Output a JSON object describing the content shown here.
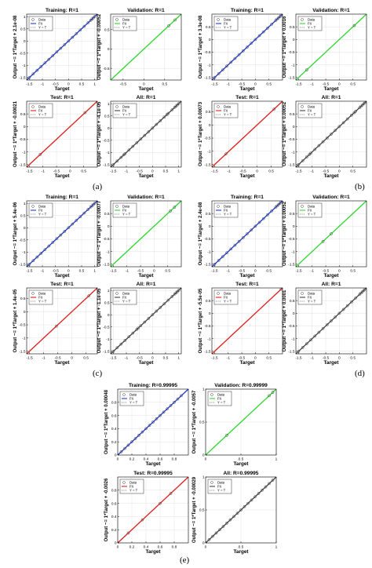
{
  "common": {
    "xlabel": "Target",
    "legend": [
      "Data",
      "Fit",
      "Y = T"
    ]
  },
  "chart_data": [
    {
      "group": "a",
      "type": "scatter",
      "title": "Training: R=1",
      "ylabel": "Output ~= 1*Target + 2.1e-08",
      "color": "#1f3ad6",
      "xlim": [
        -1.6,
        1.1
      ],
      "ylim": [
        -1.6,
        1.1
      ],
      "xticks": [
        -1.5,
        -1,
        -0.5,
        0,
        0.5,
        1
      ],
      "xtick_labels": [
        "-1.5",
        "-1",
        "-0.5",
        "0",
        "0.5",
        "1"
      ],
      "yticks": [
        -1.5,
        -1,
        -0.5,
        0,
        0.5,
        1
      ],
      "ytick_labels": [
        "-1.5",
        "-1",
        "-0.5",
        "0",
        "0.5",
        "1"
      ],
      "points": [
        -1.5,
        -1.35,
        -1.2,
        -1.05,
        -0.9,
        -0.75,
        -0.6,
        -0.45,
        -0.3,
        -0.15,
        0,
        0.15,
        0.3,
        0.45,
        0.6,
        0.75,
        0.85,
        0.9,
        0.95,
        1.0
      ]
    },
    {
      "group": "a",
      "type": "scatter",
      "title": "Validation: R=1",
      "ylabel": "Output ~= 1*Target + -0.00052",
      "color": "#2ed82e",
      "xlim": [
        -0.8,
        0.9
      ],
      "ylim": [
        -0.8,
        0.9
      ],
      "xticks": [
        -0.5,
        0,
        0.5
      ],
      "xtick_labels": [
        "-0.5",
        "0",
        "0.5"
      ],
      "yticks": [
        -0.5,
        0,
        0.5
      ],
      "ytick_labels": [
        "-0.5",
        "0",
        "0.5"
      ],
      "points": [
        0.6,
        0.75
      ]
    },
    {
      "group": "a",
      "type": "scatter",
      "title": "Test: R=1",
      "ylabel": "Output ~= 1*Target + -0.00021",
      "color": "#e0201c",
      "xlim": [
        -1.6,
        1.0
      ],
      "ylim": [
        -1.6,
        1.0
      ],
      "xticks": [
        -1.5,
        -1,
        -0.5,
        0,
        0.5
      ],
      "xtick_labels": [
        "-1.5",
        "-1",
        "-0.5",
        "0",
        "0.5"
      ],
      "yticks": [
        -1.5,
        -1,
        -0.5,
        0,
        0.5
      ],
      "ytick_labels": [
        "-1.5",
        "-1",
        "-0.5",
        "0",
        "0.5"
      ],
      "points": [
        -1.1,
        0.55
      ]
    },
    {
      "group": "a",
      "type": "scatter",
      "title": "All: R=1",
      "ylabel": "Output ~= 1*Target + -4.1e-05",
      "color": "#444444",
      "xlim": [
        -1.6,
        1.1
      ],
      "ylim": [
        -1.6,
        1.1
      ],
      "xticks": [
        -1.5,
        -1,
        -0.5,
        0,
        0.5,
        1
      ],
      "xtick_labels": [
        "-1.5",
        "-1",
        "-0.5",
        "0",
        "0.5",
        "1"
      ],
      "yticks": [
        -1.5,
        -1,
        -0.5,
        0,
        0.5,
        1
      ],
      "ytick_labels": [
        "-1.5",
        "-1",
        "-0.5",
        "0",
        "0.5",
        "1"
      ],
      "points": [
        -1.5,
        -1.35,
        -1.2,
        -1.1,
        -1.05,
        -0.9,
        -0.75,
        -0.6,
        -0.45,
        -0.3,
        -0.15,
        0,
        0.15,
        0.3,
        0.45,
        0.55,
        0.6,
        0.75,
        0.85,
        0.9,
        0.95,
        1.0
      ]
    },
    {
      "group": "b",
      "type": "scatter",
      "title": "Training: R=1",
      "ylabel": "Output ~= 1*Target + 3.3e-08",
      "color": "#1f3ad6",
      "xlim": [
        -1.6,
        1.0
      ],
      "ylim": [
        -1.6,
        1.0
      ],
      "xticks": [
        -1.5,
        -1,
        -0.5,
        0,
        0.5
      ],
      "xtick_labels": [
        "-1.5",
        "-1",
        "-0.5",
        "0",
        "0.5"
      ],
      "yticks": [
        -1.5,
        -1,
        -0.5,
        0,
        0.5
      ],
      "ytick_labels": [
        "-1.5",
        "-1",
        "-0.5",
        "0",
        "0.5"
      ],
      "points": [
        -1.5,
        -1.35,
        -1.2,
        -1.05,
        -0.9,
        -0.75,
        -0.6,
        -0.45,
        -0.3,
        -0.15,
        0,
        0.15,
        0.3,
        0.45,
        0.6,
        0.75,
        0.8,
        0.85,
        0.9,
        0.95
      ]
    },
    {
      "group": "b",
      "type": "scatter",
      "title": "Validation: R=1",
      "ylabel": "Output ~= 1*Target + 0.0016",
      "color": "#2ed82e",
      "xlim": [
        -1.6,
        1.0
      ],
      "ylim": [
        -1.6,
        1.0
      ],
      "xticks": [
        -1.5,
        -1,
        -0.5,
        0,
        0.5
      ],
      "xtick_labels": [
        "-1.5",
        "-1",
        "-0.5",
        "0",
        "0.5"
      ],
      "yticks": [
        -1.5,
        -1,
        -0.5,
        0,
        0.5
      ],
      "ytick_labels": [
        "-1.5",
        "-1",
        "-0.5",
        "0",
        "0.5"
      ],
      "points": [
        -1.2,
        0.55
      ]
    },
    {
      "group": "b",
      "type": "scatter",
      "title": "Test: R=1",
      "ylabel": "Output ~= 1*Target + 0.00073",
      "color": "#e0201c",
      "xlim": [
        -1.6,
        0.9
      ],
      "ylim": [
        -1.6,
        0.9
      ],
      "xticks": [
        -1.5,
        -1,
        -0.5,
        0,
        0.5
      ],
      "xtick_labels": [
        "-1.5",
        "-1",
        "-0.5",
        "0",
        "0.5"
      ],
      "yticks": [
        -1.5,
        -1,
        -0.5,
        0,
        0.5
      ],
      "ytick_labels": [
        "-1.5",
        "-1",
        "-0.5",
        "0",
        "0.5"
      ],
      "points": [
        -1.1,
        0.6
      ]
    },
    {
      "group": "b",
      "type": "scatter",
      "title": "All: R=1",
      "ylabel": "Output ~= 1*Target + 0.00052",
      "color": "#444444",
      "xlim": [
        -1.6,
        1.0
      ],
      "ylim": [
        -1.6,
        1.0
      ],
      "xticks": [
        -1.5,
        -1,
        -0.5,
        0,
        0.5
      ],
      "xtick_labels": [
        "-1.5",
        "-1",
        "-0.5",
        "0",
        "0.5"
      ],
      "yticks": [
        -1.5,
        -1,
        -0.5,
        0,
        0.5
      ],
      "ytick_labels": [
        "-1.5",
        "-1",
        "-0.5",
        "0",
        "0.5"
      ],
      "points": [
        -1.5,
        -1.35,
        -1.2,
        -1.1,
        -1.05,
        -0.9,
        -0.75,
        -0.6,
        -0.45,
        -0.3,
        -0.15,
        0,
        0.15,
        0.3,
        0.45,
        0.55,
        0.6,
        0.75,
        0.8,
        0.85,
        0.9,
        0.95
      ]
    },
    {
      "group": "c",
      "type": "scatter",
      "title": "Training: R=1",
      "ylabel": "Output ~= 1*Target + 5.4e-06",
      "color": "#1f3ad6",
      "xlim": [
        -1.6,
        1.1
      ],
      "ylim": [
        -1.6,
        1.1
      ],
      "xticks": [
        -1.5,
        -1,
        -0.5,
        0,
        0.5,
        1
      ],
      "xtick_labels": [
        "-1.5",
        "-1",
        "-0.5",
        "0",
        "0.5",
        "1"
      ],
      "yticks": [
        -1.5,
        -1,
        -0.5,
        0,
        0.5,
        1
      ],
      "ytick_labels": [
        "-1.5",
        "-1",
        "-0.5",
        "0",
        "0.5",
        "1"
      ],
      "points": [
        -1.5,
        -1.35,
        -1.2,
        -1.05,
        -0.9,
        -0.75,
        -0.6,
        -0.45,
        -0.3,
        -0.15,
        0,
        0.15,
        0.3,
        0.45,
        0.6,
        0.75,
        0.85,
        0.9,
        0.95,
        1.0
      ]
    },
    {
      "group": "c",
      "type": "scatter",
      "title": "Validation: R=1",
      "ylabel": "Output ~= 1*Target + -0.00077",
      "color": "#2ed82e",
      "xlim": [
        -1.6,
        1.0
      ],
      "ylim": [
        -1.6,
        1.0
      ],
      "xticks": [
        -1.5,
        -1,
        -0.5,
        0,
        0.5
      ],
      "xtick_labels": [
        "-1.5",
        "-1",
        "-0.5",
        "0",
        "0.5"
      ],
      "yticks": [
        -1.5,
        -1,
        -0.5,
        0,
        0.5
      ],
      "ytick_labels": [
        "-1.5",
        "-1",
        "-0.5",
        "0",
        "0.5"
      ],
      "points": [
        0.6,
        0.75
      ]
    },
    {
      "group": "c",
      "type": "scatter",
      "title": "Test: R=1",
      "ylabel": "Output ~= 1*Target + 1.4e-05",
      "color": "#e0201c",
      "xlim": [
        -1.6,
        0.9
      ],
      "ylim": [
        -1.6,
        0.9
      ],
      "xticks": [
        -1.5,
        -1,
        -0.5,
        0,
        0.5
      ],
      "xtick_labels": [
        "-1.5",
        "-1",
        "-0.5",
        "0",
        "0.5"
      ],
      "yticks": [
        -1.5,
        -1,
        -0.5,
        0,
        0.5
      ],
      "ytick_labels": [
        "-1.5",
        "-1",
        "-0.5",
        "0",
        "0.5"
      ],
      "points": [
        -0.55,
        0.6
      ]
    },
    {
      "group": "c",
      "type": "scatter",
      "title": "All: R=1",
      "ylabel": "Output ~= 1*Target + -1.1e-05",
      "color": "#444444",
      "xlim": [
        -1.6,
        1.1
      ],
      "ylim": [
        -1.6,
        1.1
      ],
      "xticks": [
        -1.5,
        -1,
        -0.5,
        0,
        0.5,
        1
      ],
      "xtick_labels": [
        "-1.5",
        "-1",
        "-0.5",
        "0",
        "0.5",
        "1"
      ],
      "yticks": [
        -1.5,
        -1,
        -0.5,
        0,
        0.5,
        1
      ],
      "ytick_labels": [
        "-1.5",
        "-1",
        "-0.5",
        "0",
        "0.5",
        "1"
      ],
      "points": [
        -1.5,
        -1.35,
        -1.2,
        -1.05,
        -0.9,
        -0.75,
        -0.6,
        -0.55,
        -0.45,
        -0.3,
        -0.15,
        0,
        0.15,
        0.3,
        0.45,
        0.6,
        0.75,
        0.85,
        0.9,
        0.95,
        1.0
      ]
    },
    {
      "group": "d",
      "type": "scatter",
      "title": "Training: R=1",
      "ylabel": "Output ~= 1*Target + 2.4e-08",
      "color": "#1f3ad6",
      "xlim": [
        -1.6,
        1.0
      ],
      "ylim": [
        -1.6,
        1.0
      ],
      "xticks": [
        -1.5,
        -1,
        -0.5,
        0,
        0.5
      ],
      "xtick_labels": [
        "-1.5",
        "-1",
        "-0.5",
        "0",
        "0.5"
      ],
      "yticks": [
        -1.5,
        -1,
        -0.5,
        0,
        0.5
      ],
      "ytick_labels": [
        "-1.5",
        "-1",
        "-0.5",
        "0",
        "0.5"
      ],
      "points": [
        -1.5,
        -1.35,
        -1.2,
        -1.05,
        -0.9,
        -0.75,
        -0.6,
        -0.45,
        -0.3,
        -0.15,
        0,
        0.15,
        0.3,
        0.45,
        0.6,
        0.75,
        0.8,
        0.85,
        0.9,
        0.95
      ]
    },
    {
      "group": "d",
      "type": "scatter",
      "title": "Validation: R=1",
      "ylabel": "Output ~= 1*Target + 0.00052",
      "color": "#2ed82e",
      "xlim": [
        -1.6,
        1.0
      ],
      "ylim": [
        -1.6,
        1.0
      ],
      "xticks": [
        -1.5,
        -1,
        -0.5,
        0,
        0.5
      ],
      "xtick_labels": [
        "-1.5",
        "-1",
        "-0.5",
        "0",
        "0.5"
      ],
      "yticks": [
        -1.5,
        -1,
        -0.5,
        0,
        0.5
      ],
      "ytick_labels": [
        "-1.5",
        "-1",
        "-0.5",
        "0",
        "0.5"
      ],
      "points": [
        -0.6,
        -0.3
      ]
    },
    {
      "group": "d",
      "type": "scatter",
      "title": "Test: R=1",
      "ylabel": "Output ~= 1*Target + -5.5e-05",
      "color": "#e0201c",
      "xlim": [
        -1.6,
        1.0
      ],
      "ylim": [
        -1.6,
        1.0
      ],
      "xticks": [
        -1.5,
        -1,
        -0.5,
        0,
        0.5
      ],
      "xtick_labels": [
        "-1.5",
        "-1",
        "-0.5",
        "0",
        "0.5"
      ],
      "yticks": [
        -1.5,
        -1,
        -0.5,
        0,
        0.5
      ],
      "ytick_labels": [
        "-1.5",
        "-1",
        "-0.5",
        "0",
        "0.5"
      ],
      "points": [
        0.95
      ]
    },
    {
      "group": "d",
      "type": "scatter",
      "title": "All: R=1",
      "ylabel": "Output ~= 1*Target + 0.0001",
      "color": "#444444",
      "xlim": [
        -1.6,
        1.0
      ],
      "ylim": [
        -1.6,
        1.0
      ],
      "xticks": [
        -1.5,
        -1,
        -0.5,
        0,
        0.5
      ],
      "xtick_labels": [
        "-1.5",
        "-1",
        "-0.5",
        "0",
        "0.5"
      ],
      "yticks": [
        -1.5,
        -1,
        -0.5,
        0,
        0.5
      ],
      "ytick_labels": [
        "-1.5",
        "-1",
        "-0.5",
        "0",
        "0.5"
      ],
      "points": [
        -1.5,
        -1.35,
        -1.2,
        -1.05,
        -0.9,
        -0.75,
        -0.6,
        -0.45,
        -0.3,
        -0.15,
        0,
        0.15,
        0.3,
        0.45,
        0.6,
        0.75,
        0.8,
        0.85,
        0.9,
        0.95
      ]
    },
    {
      "group": "e",
      "type": "scatter",
      "title": "Training: R=0.99995",
      "ylabel": "Output ~= 1*Target + 0.00048",
      "color": "#1f3ad6",
      "xlim": [
        0,
        1.0
      ],
      "ylim": [
        0,
        1.0
      ],
      "xticks": [
        0,
        0.2,
        0.4,
        0.6,
        0.8
      ],
      "xtick_labels": [
        "0",
        "0.2",
        "0.4",
        "0.6",
        "0.8"
      ],
      "yticks": [
        0,
        0.2,
        0.4,
        0.6,
        0.8
      ],
      "ytick_labels": [
        "0",
        "0.2",
        "0.4",
        "0.6",
        "0.8"
      ],
      "points": [
        0.05,
        0.1,
        0.15,
        0.2,
        0.25,
        0.3,
        0.35,
        0.4,
        0.45,
        0.5,
        0.55,
        0.6,
        0.65,
        0.7,
        0.75,
        0.8,
        0.85,
        0.9
      ]
    },
    {
      "group": "e",
      "type": "scatter",
      "title": "Validation: R=0.99999",
      "ylabel": "Output ~= 1*Target + -0.0057",
      "color": "#2ed82e",
      "xlim": [
        0,
        1.0
      ],
      "ylim": [
        0,
        1.0
      ],
      "xticks": [
        0,
        0.5,
        1
      ],
      "xtick_labels": [
        "0",
        "0.5",
        "1"
      ],
      "yticks": [
        0,
        0.5,
        1
      ],
      "ytick_labels": [
        "0",
        "0.5",
        "1"
      ],
      "points": [
        0.3,
        0.9,
        0.95
      ]
    },
    {
      "group": "e",
      "type": "scatter",
      "title": "Test: R=0.99995",
      "ylabel": "Output ~= 1*Target + -0.0026",
      "color": "#e0201c",
      "xlim": [
        0,
        1.0
      ],
      "ylim": [
        0,
        1.0
      ],
      "xticks": [
        0,
        0.2,
        0.4,
        0.6,
        0.8
      ],
      "xtick_labels": [
        "0",
        "0.2",
        "0.4",
        "0.6",
        "0.8"
      ],
      "yticks": [
        0,
        0.2,
        0.4,
        0.6,
        0.8
      ],
      "ytick_labels": [
        "0",
        "0.2",
        "0.4",
        "0.6",
        "0.8"
      ],
      "points": [
        0.15,
        0.35,
        0.6,
        0.75
      ]
    },
    {
      "group": "e",
      "type": "scatter",
      "title": "All: R=0.99995",
      "ylabel": "Output ~= 1*Target + -0.00029",
      "color": "#444444",
      "xlim": [
        0,
        1.0
      ],
      "ylim": [
        0,
        1.0
      ],
      "xticks": [
        0,
        0.5,
        1
      ],
      "xtick_labels": [
        "0",
        "0.5",
        "1"
      ],
      "yticks": [
        0,
        0.5,
        1
      ],
      "ytick_labels": [
        "0",
        "0.5",
        "1"
      ],
      "points": [
        0.05,
        0.1,
        0.15,
        0.2,
        0.25,
        0.3,
        0.35,
        0.4,
        0.45,
        0.5,
        0.55,
        0.6,
        0.65,
        0.7,
        0.75,
        0.8,
        0.85,
        0.9,
        0.95
      ]
    }
  ],
  "panel_letters": [
    "(a)",
    "(b)",
    "(c)",
    "(d)",
    "(e)"
  ]
}
